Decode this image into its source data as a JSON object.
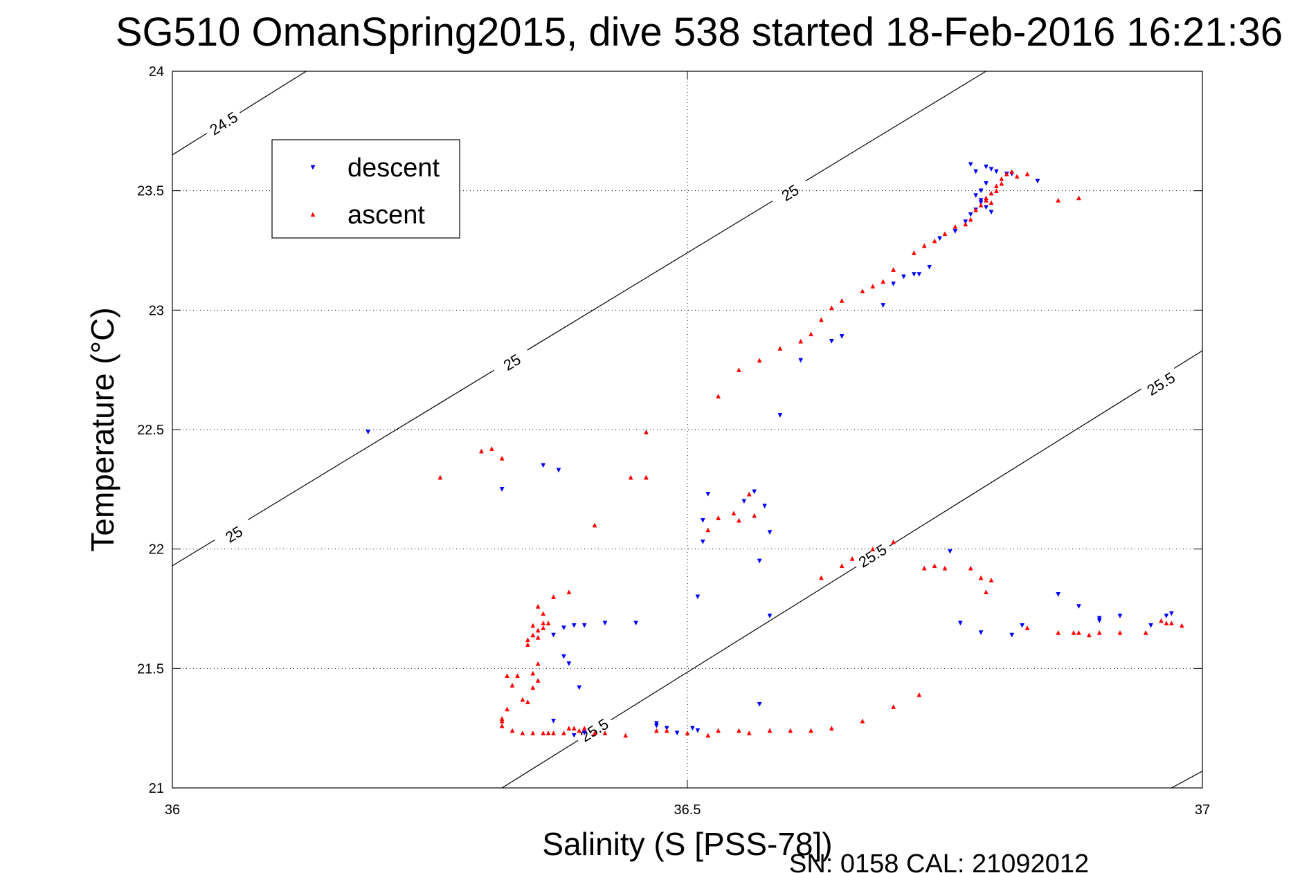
{
  "chart_data": {
    "type": "scatter",
    "title": "SG510 OmanSpring2015, dive 538 started 18-Feb-2016 16:21:36",
    "xlabel": "Salinity (S [PSS-78])",
    "ylabel": "Temperature (°C)",
    "footer": "SN: 0158  CAL: 21092012",
    "xlim": [
      36,
      37
    ],
    "ylim": [
      21,
      24
    ],
    "x_ticks": [
      36,
      36.5,
      37
    ],
    "x_tick_labels": [
      "36",
      "36.5",
      "37"
    ],
    "y_ticks": [
      21,
      21.5,
      22,
      22.5,
      23,
      23.5,
      24
    ],
    "y_tick_labels": [
      "21",
      "21.5",
      "22",
      "22.5",
      "23",
      "23.5",
      "24"
    ],
    "grid": true,
    "legend": {
      "position": "top-left",
      "entries": [
        {
          "label": "descent",
          "color": "#0000ff",
          "marker": "triangle-down"
        },
        {
          "label": "ascent",
          "color": "#ff0000",
          "marker": "triangle-up"
        }
      ]
    },
    "density_contours": [
      {
        "level": "24.5",
        "x0": 36.0,
        "y0": 23.65,
        "x1": 36.13,
        "y1": 24.0,
        "labels": [
          {
            "text": "24.5",
            "x": 36.05,
            "y": 23.78
          }
        ]
      },
      {
        "level": "25",
        "x0": 36.0,
        "y0": 21.93,
        "x1": 36.79,
        "y1": 24.0,
        "labels": [
          {
            "text": "25",
            "x": 36.06,
            "y": 22.06
          },
          {
            "text": "25",
            "x": 36.33,
            "y": 22.78
          },
          {
            "text": "25",
            "x": 36.6,
            "y": 23.49
          }
        ]
      },
      {
        "level": "25.5",
        "x0": 36.32,
        "y0": 21.0,
        "x1": 37.0,
        "y1": 22.83,
        "labels": [
          {
            "text": "25.5",
            "x": 36.41,
            "y": 21.24
          },
          {
            "text": "25.5",
            "x": 36.68,
            "y": 21.97
          },
          {
            "text": "25.5",
            "x": 36.96,
            "y": 22.69
          }
        ]
      },
      {
        "level": "",
        "x0": 36.97,
        "y0": 21.0,
        "x1": 37.0,
        "y1": 21.07,
        "labels": []
      }
    ],
    "series": [
      {
        "name": "descent",
        "color": "#0000ff",
        "marker": "triangle-down",
        "points": [
          [
            36.19,
            22.49
          ],
          [
            36.32,
            22.25
          ],
          [
            36.36,
            22.35
          ],
          [
            36.375,
            22.33
          ],
          [
            36.37,
            21.64
          ],
          [
            36.38,
            21.67
          ],
          [
            36.39,
            21.68
          ],
          [
            36.4,
            21.68
          ],
          [
            36.42,
            21.69
          ],
          [
            36.45,
            21.69
          ],
          [
            36.38,
            21.55
          ],
          [
            36.385,
            21.52
          ],
          [
            36.395,
            21.42
          ],
          [
            36.37,
            21.28
          ],
          [
            36.39,
            21.22
          ],
          [
            36.4,
            21.23
          ],
          [
            36.47,
            21.26
          ],
          [
            36.48,
            21.25
          ],
          [
            36.49,
            21.23
          ],
          [
            36.505,
            21.25
          ],
          [
            36.51,
            21.24
          ],
          [
            36.47,
            21.27
          ],
          [
            36.57,
            21.35
          ],
          [
            36.51,
            21.8
          ],
          [
            36.515,
            22.12
          ],
          [
            36.515,
            22.03
          ],
          [
            36.52,
            22.23
          ],
          [
            36.555,
            22.2
          ],
          [
            36.565,
            22.24
          ],
          [
            36.575,
            22.18
          ],
          [
            36.58,
            22.07
          ],
          [
            36.57,
            21.95
          ],
          [
            36.58,
            21.72
          ],
          [
            36.59,
            22.56
          ],
          [
            36.61,
            22.79
          ],
          [
            36.64,
            22.87
          ],
          [
            36.65,
            22.89
          ],
          [
            36.69,
            23.02
          ],
          [
            36.7,
            23.11
          ],
          [
            36.71,
            23.14
          ],
          [
            36.72,
            23.15
          ],
          [
            36.725,
            23.15
          ],
          [
            36.735,
            23.18
          ],
          [
            36.745,
            23.3
          ],
          [
            36.76,
            23.33
          ],
          [
            36.77,
            23.37
          ],
          [
            36.775,
            23.4
          ],
          [
            36.78,
            23.42
          ],
          [
            36.785,
            23.45
          ],
          [
            36.78,
            23.48
          ],
          [
            36.785,
            23.5
          ],
          [
            36.79,
            23.53
          ],
          [
            36.775,
            23.61
          ],
          [
            36.78,
            23.58
          ],
          [
            36.79,
            23.6
          ],
          [
            36.795,
            23.59
          ],
          [
            36.8,
            23.58
          ],
          [
            36.81,
            23.57
          ],
          [
            36.815,
            23.57
          ],
          [
            36.84,
            23.54
          ],
          [
            36.785,
            23.46
          ],
          [
            36.79,
            23.43
          ],
          [
            36.795,
            23.41
          ],
          [
            36.755,
            21.99
          ],
          [
            36.765,
            21.69
          ],
          [
            36.785,
            21.65
          ],
          [
            36.815,
            21.64
          ],
          [
            36.825,
            21.68
          ],
          [
            36.86,
            21.81
          ],
          [
            36.88,
            21.76
          ],
          [
            36.9,
            21.71
          ],
          [
            36.92,
            21.72
          ],
          [
            36.95,
            21.68
          ],
          [
            36.965,
            21.72
          ],
          [
            36.97,
            21.73
          ],
          [
            36.9,
            21.7
          ]
        ]
      },
      {
        "name": "ascent",
        "color": "#ff0000",
        "marker": "triangle-up",
        "points": [
          [
            36.26,
            22.3
          ],
          [
            36.3,
            22.41
          ],
          [
            36.31,
            22.42
          ],
          [
            36.32,
            22.38
          ],
          [
            36.41,
            22.1
          ],
          [
            36.445,
            22.3
          ],
          [
            36.46,
            22.3
          ],
          [
            36.46,
            22.49
          ],
          [
            36.32,
            21.28
          ],
          [
            36.32,
            21.26
          ],
          [
            36.32,
            21.29
          ],
          [
            36.325,
            21.33
          ],
          [
            36.33,
            21.24
          ],
          [
            36.34,
            21.23
          ],
          [
            36.35,
            21.23
          ],
          [
            36.36,
            21.23
          ],
          [
            36.365,
            21.23
          ],
          [
            36.37,
            21.23
          ],
          [
            36.38,
            21.23
          ],
          [
            36.385,
            21.25
          ],
          [
            36.39,
            21.25
          ],
          [
            36.395,
            21.24
          ],
          [
            36.4,
            21.25
          ],
          [
            36.41,
            21.23
          ],
          [
            36.42,
            21.23
          ],
          [
            36.44,
            21.22
          ],
          [
            36.47,
            21.24
          ],
          [
            36.48,
            21.24
          ],
          [
            36.5,
            21.23
          ],
          [
            36.52,
            21.22
          ],
          [
            36.53,
            21.24
          ],
          [
            36.55,
            21.24
          ],
          [
            36.56,
            21.23
          ],
          [
            36.58,
            21.24
          ],
          [
            36.6,
            21.24
          ],
          [
            36.62,
            21.24
          ],
          [
            36.64,
            21.25
          ],
          [
            36.67,
            21.28
          ],
          [
            36.7,
            21.34
          ],
          [
            36.725,
            21.39
          ],
          [
            36.325,
            21.47
          ],
          [
            36.335,
            21.47
          ],
          [
            36.33,
            21.43
          ],
          [
            36.34,
            21.37
          ],
          [
            36.345,
            21.36
          ],
          [
            36.35,
            21.42
          ],
          [
            36.355,
            21.45
          ],
          [
            36.35,
            21.48
          ],
          [
            36.355,
            21.52
          ],
          [
            36.345,
            21.62
          ],
          [
            36.35,
            21.64
          ],
          [
            36.355,
            21.66
          ],
          [
            36.36,
            21.69
          ],
          [
            36.345,
            21.6
          ],
          [
            36.355,
            21.63
          ],
          [
            36.35,
            21.68
          ],
          [
            36.36,
            21.67
          ],
          [
            36.365,
            21.69
          ],
          [
            36.37,
            21.8
          ],
          [
            36.36,
            21.73
          ],
          [
            36.385,
            21.82
          ],
          [
            36.355,
            21.76
          ],
          [
            36.53,
            22.13
          ],
          [
            36.55,
            22.12
          ],
          [
            36.565,
            22.14
          ],
          [
            36.63,
            21.88
          ],
          [
            36.65,
            21.93
          ],
          [
            36.66,
            21.96
          ],
          [
            36.68,
            22.0
          ],
          [
            36.7,
            22.03
          ],
          [
            36.73,
            21.92
          ],
          [
            36.74,
            21.93
          ],
          [
            36.75,
            21.92
          ],
          [
            36.775,
            21.92
          ],
          [
            36.785,
            21.88
          ],
          [
            36.795,
            21.87
          ],
          [
            36.79,
            21.82
          ],
          [
            36.83,
            21.67
          ],
          [
            36.86,
            21.65
          ],
          [
            36.875,
            21.65
          ],
          [
            36.88,
            21.65
          ],
          [
            36.89,
            21.64
          ],
          [
            36.9,
            21.65
          ],
          [
            36.92,
            21.65
          ],
          [
            36.945,
            21.65
          ],
          [
            36.96,
            21.7
          ],
          [
            36.965,
            21.69
          ],
          [
            36.97,
            21.69
          ],
          [
            36.98,
            21.68
          ],
          [
            36.52,
            22.08
          ],
          [
            36.53,
            22.13
          ],
          [
            36.545,
            22.15
          ],
          [
            36.56,
            22.23
          ],
          [
            36.53,
            22.64
          ],
          [
            36.55,
            22.75
          ],
          [
            36.57,
            22.79
          ],
          [
            36.59,
            22.84
          ],
          [
            36.61,
            22.87
          ],
          [
            36.62,
            22.9
          ],
          [
            36.63,
            22.96
          ],
          [
            36.64,
            23.01
          ],
          [
            36.65,
            23.04
          ],
          [
            36.67,
            23.08
          ],
          [
            36.68,
            23.1
          ],
          [
            36.69,
            23.12
          ],
          [
            36.7,
            23.17
          ],
          [
            36.72,
            23.24
          ],
          [
            36.73,
            23.27
          ],
          [
            36.74,
            23.29
          ],
          [
            36.75,
            23.32
          ],
          [
            36.76,
            23.35
          ],
          [
            36.77,
            23.36
          ],
          [
            36.775,
            23.38
          ],
          [
            36.78,
            23.42
          ],
          [
            36.785,
            23.44
          ],
          [
            36.79,
            23.46
          ],
          [
            36.795,
            23.49
          ],
          [
            36.8,
            23.52
          ],
          [
            36.805,
            23.55
          ],
          [
            36.81,
            23.57
          ],
          [
            36.815,
            23.58
          ],
          [
            36.82,
            23.56
          ],
          [
            36.83,
            23.57
          ],
          [
            36.795,
            23.45
          ],
          [
            36.79,
            23.47
          ],
          [
            36.8,
            23.5
          ],
          [
            36.805,
            23.53
          ],
          [
            36.88,
            23.47
          ],
          [
            36.86,
            23.46
          ]
        ]
      }
    ]
  }
}
